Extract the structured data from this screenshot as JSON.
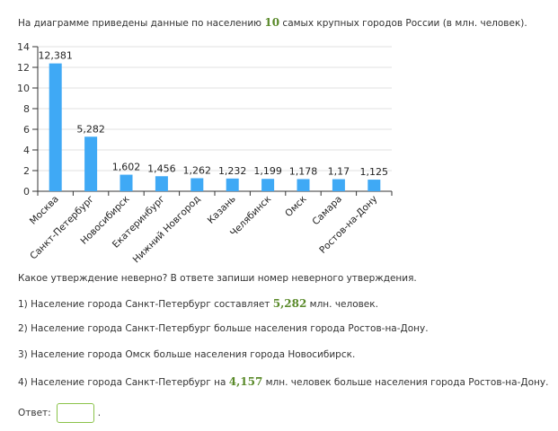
{
  "intro": {
    "before": "На диаграмме приведены данные по населению ",
    "number": "10",
    "after": " самых крупных городов России (в млн. человек)."
  },
  "chart_data": {
    "type": "bar",
    "categories": [
      "Москва",
      "Санкт-Петербург",
      "Новосибирск",
      "Екатеринбург",
      "Нижний Новгород",
      "Казань",
      "Челябинск",
      "Омск",
      "Самара",
      "Ростов-на-Дону"
    ],
    "values": [
      12.381,
      5.282,
      1.602,
      1.456,
      1.262,
      1.232,
      1.199,
      1.178,
      1.17,
      1.125
    ],
    "value_labels": [
      "12,381",
      "5,282",
      "1,602",
      "1,456",
      "1,262",
      "1,232",
      "1,199",
      "1,178",
      "1,17",
      "1,125"
    ],
    "ylim": [
      0,
      14
    ],
    "yticks": [
      0,
      2,
      4,
      6,
      8,
      10,
      12,
      14
    ],
    "grid": true,
    "bar_color": "#3fa9f5",
    "title": "",
    "xlabel": "",
    "ylabel": ""
  },
  "question": "Какое утверждение неверно? В ответе запиши номер неверного утверждения.",
  "statements": [
    {
      "before": "1) Население города Санкт-Петербург составляет ",
      "number": "5,282",
      "after": " млн. человек."
    },
    {
      "before": "2) Население города Санкт-Петербург больше населения города Ростов-на-Дону.",
      "number": "",
      "after": ""
    },
    {
      "before": "3) Население города Омск больше населения города Новосибирск.",
      "number": "",
      "after": ""
    },
    {
      "before": "4) Население города Санкт-Петербург на ",
      "number": "4,157",
      "after": " млн. человек больше населения города Ростов-на-Дону."
    }
  ],
  "answer": {
    "label": "Ответ:",
    "value": "",
    "suffix": "."
  }
}
